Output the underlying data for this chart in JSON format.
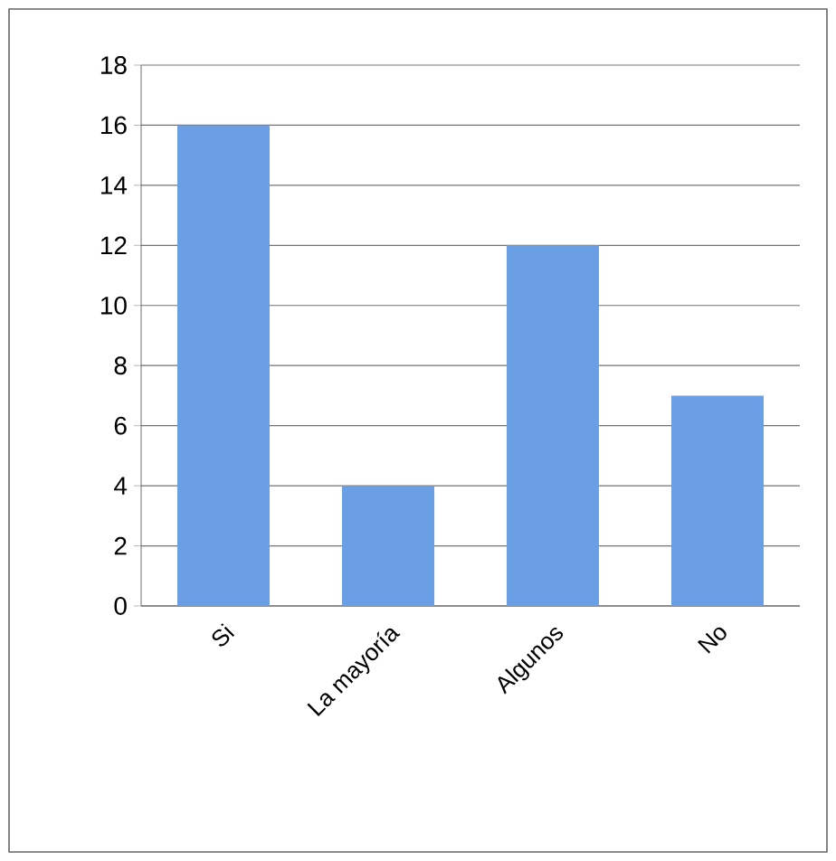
{
  "chart_data": {
    "type": "bar",
    "categories": [
      "Si",
      "La mayoría",
      "Algunos",
      "No"
    ],
    "values": [
      16,
      4,
      12,
      7
    ],
    "color": "#6a9fe6",
    "ylim": [
      0,
      18
    ],
    "yticks": [
      0,
      2,
      4,
      6,
      8,
      10,
      12,
      14,
      16,
      18
    ],
    "grid": "y"
  }
}
